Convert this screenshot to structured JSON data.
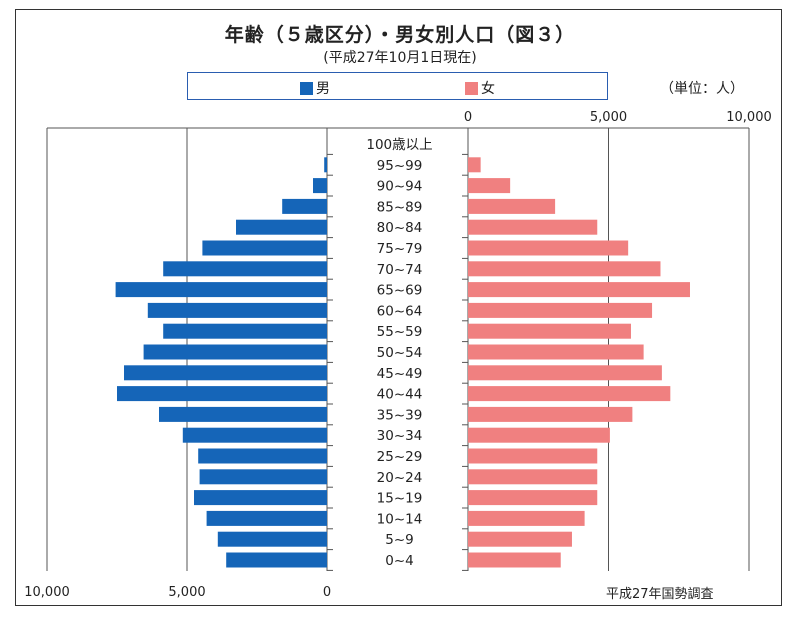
{
  "header": {
    "title": "年齢（５歳区分）・男女別人口（図３）",
    "subtitle": "(平成27年10月1日現在)"
  },
  "unit_label": "（単位：人）",
  "source_note": "平成27年国勢調査",
  "chart_data": {
    "type": "bar",
    "orientation": "horizontal",
    "layout_style": "population-pyramid",
    "title": "年齢（５歳区分）・男女別人口（図３）",
    "subtitle": "(平成27年10月1日現在)",
    "categories": [
      "0~4",
      "5~9",
      "10~14",
      "15~19",
      "20~24",
      "25~29",
      "30~34",
      "35~39",
      "40~44",
      "45~49",
      "50~54",
      "55~59",
      "60~64",
      "65~69",
      "70~74",
      "75~79",
      "80~84",
      "85~89",
      "90~94",
      "95~99",
      "100歳以上"
    ],
    "series": [
      {
        "name": "男",
        "color": "#1565b8",
        "values": [
          3600,
          3900,
          4300,
          4750,
          4550,
          4600,
          5150,
          6000,
          7500,
          7250,
          6550,
          5850,
          6400,
          7550,
          5850,
          4450,
          3250,
          1600,
          500,
          100,
          0
        ]
      },
      {
        "name": "女",
        "color": "#f08080",
        "values": [
          3300,
          3700,
          4150,
          4600,
          4600,
          4600,
          5050,
          5850,
          7200,
          6900,
          6250,
          5800,
          6550,
          7900,
          6850,
          5700,
          4600,
          3100,
          1500,
          450,
          0
        ]
      }
    ],
    "xlim": [
      0,
      10000
    ],
    "male_axis_ticks": [
      "10,000",
      "5,000",
      "0"
    ],
    "female_axis_ticks": [
      "0",
      "5,000",
      "10,000"
    ],
    "legend_position": "top",
    "grid": "vertical"
  }
}
